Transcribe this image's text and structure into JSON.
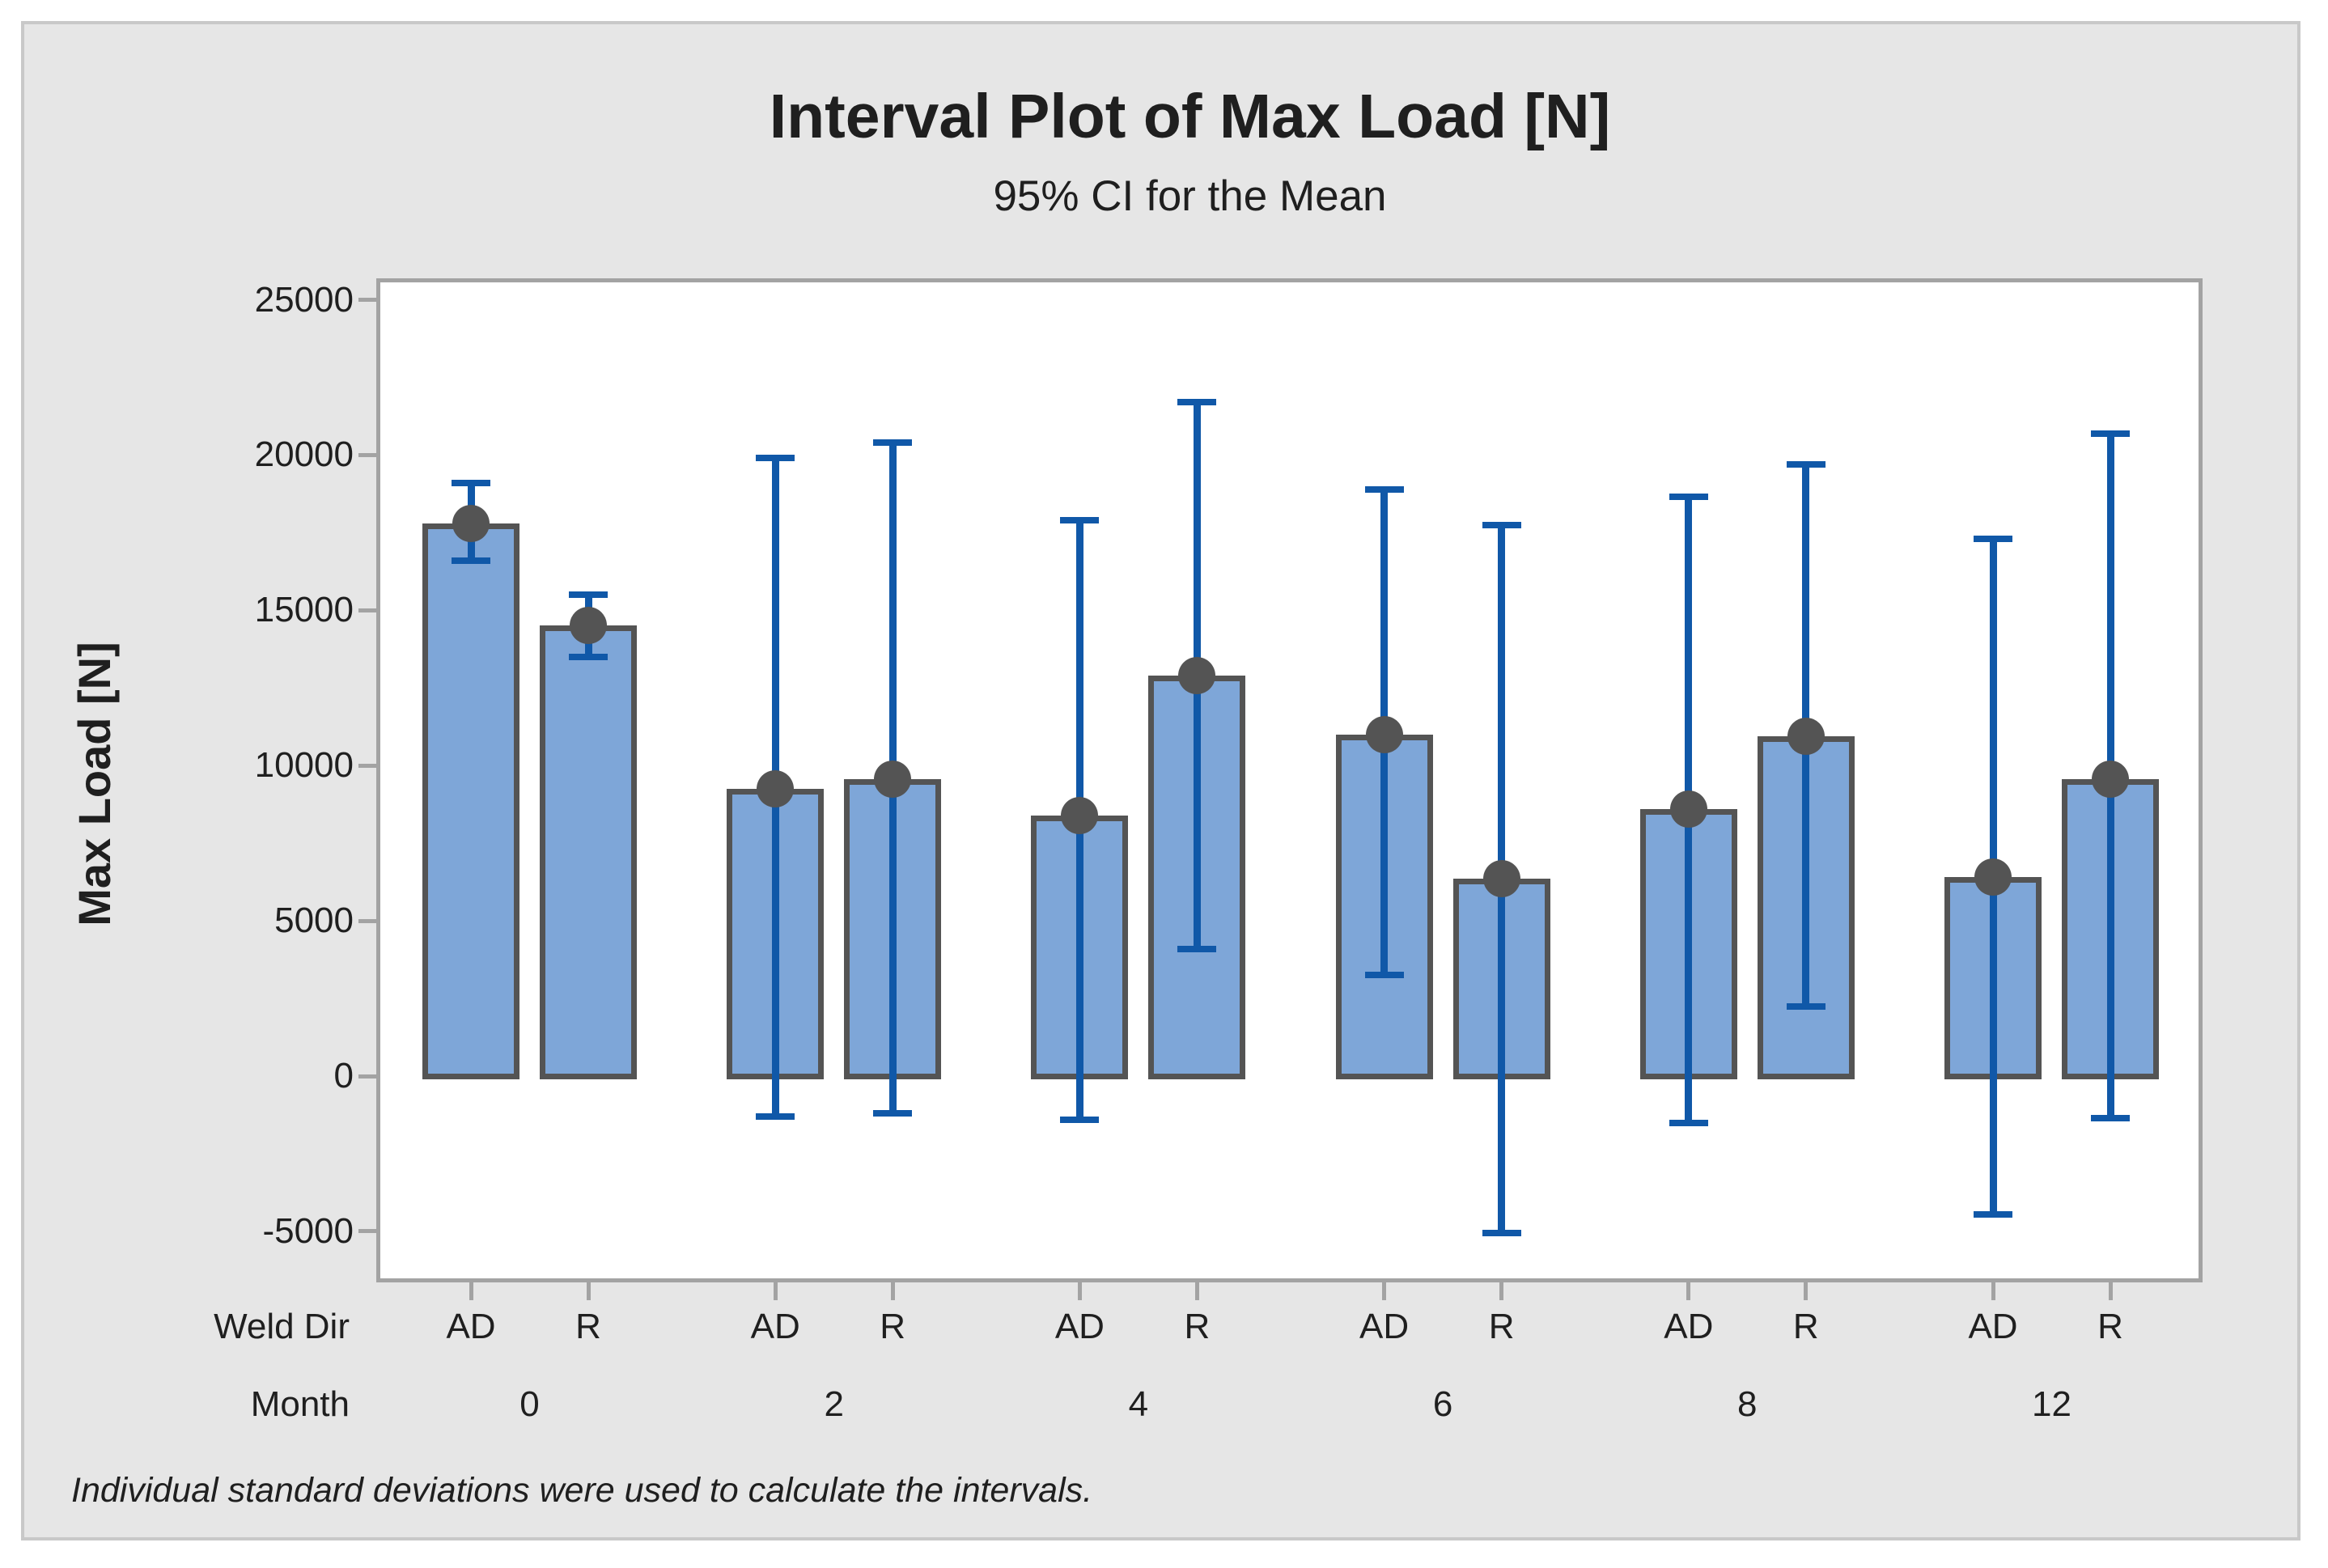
{
  "chart_data": {
    "type": "bar",
    "variant": "interval-plot-with-error-bars",
    "title": "Interval Plot of Max Load [N]",
    "subtitle": "95% CI for the Mean",
    "ylabel": "Max Load [N]",
    "footnote": "Individual standard deviations were used to calculate the intervals.",
    "grid": false,
    "legend": "none",
    "y_ticks": [
      25000,
      20000,
      15000,
      10000,
      5000,
      0,
      -5000
    ],
    "ylim": [
      -6700,
      25700
    ],
    "x_axis": {
      "row1_label": "Weld Dir",
      "row2_label": "Month",
      "weld_dirs": [
        "AD",
        "R"
      ],
      "months": [
        "0",
        "2",
        "4",
        "6",
        "8",
        "12"
      ]
    },
    "groups": [
      {
        "month": "0",
        "bars": [
          {
            "weld_dir": "AD",
            "mean": 17800,
            "ci_low": 16600,
            "ci_high": 19100
          },
          {
            "weld_dir": "R",
            "mean": 14500,
            "ci_low": 13500,
            "ci_high": 15500
          }
        ]
      },
      {
        "month": "2",
        "bars": [
          {
            "weld_dir": "AD",
            "mean": 9250,
            "ci_low": -1300,
            "ci_high": 19900
          },
          {
            "weld_dir": "R",
            "mean": 9550,
            "ci_low": -1200,
            "ci_high": 20400
          }
        ]
      },
      {
        "month": "4",
        "bars": [
          {
            "weld_dir": "AD",
            "mean": 8400,
            "ci_low": -1400,
            "ci_high": 17900
          },
          {
            "weld_dir": "R",
            "mean": 12900,
            "ci_low": 4100,
            "ci_high": 21700
          }
        ]
      },
      {
        "month": "6",
        "bars": [
          {
            "weld_dir": "AD",
            "mean": 11000,
            "ci_low": 3250,
            "ci_high": 18900
          },
          {
            "weld_dir": "R",
            "mean": 6350,
            "ci_low": -5050,
            "ci_high": 17750
          }
        ]
      },
      {
        "month": "8",
        "bars": [
          {
            "weld_dir": "AD",
            "mean": 8600,
            "ci_low": -1500,
            "ci_high": 18650
          },
          {
            "weld_dir": "R",
            "mean": 10950,
            "ci_low": 2250,
            "ci_high": 19700
          }
        ]
      },
      {
        "month": "12",
        "bars": [
          {
            "weld_dir": "AD",
            "mean": 6400,
            "ci_low": -4450,
            "ci_high": 17300
          },
          {
            "weld_dir": "R",
            "mean": 9550,
            "ci_low": -1350,
            "ci_high": 20700
          }
        ]
      }
    ],
    "colors": {
      "bar_fill": "#7ea6d8",
      "bar_border": "#545454",
      "mean_dot": "#545454",
      "interval_line": "#1058a8",
      "plot_border": "#a3a3a3",
      "tick_mark": "#a3a3a3",
      "figure_background": "#e6e6e6",
      "plot_background": "#ffffff",
      "frame_border": "#c8c8c8",
      "text": "#1f1f1f"
    }
  }
}
